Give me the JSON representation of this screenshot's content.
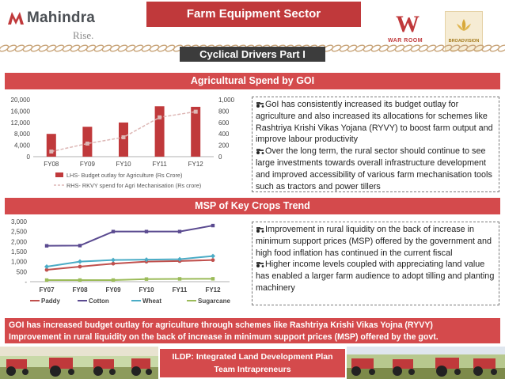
{
  "header": {
    "brand": "Mahindra",
    "tagline": "Rise.",
    "sector_title": "Farm Equipment Sector",
    "partner_logo_1_text": "WAR ROOM",
    "partner_logo_1_mark": "W",
    "partner_logo_2_text": "BROADVISION",
    "subtitle": "Cyclical Drivers Part I"
  },
  "section1": {
    "title": "Agricultural Spend by GOI",
    "bullets": [
      "GoI has consistently increased its budget outlay for agriculture and also increased its allocations for schemes like Rashtriya Krishi Vikas Yojana (RYVY) to boost farm output and improve labour productivity",
      "Over the long term, the rural sector should continue to see large investments towards overall infrastructure development and improved accessibility of various farm mechanisation tools such as tractors and power tillers"
    ]
  },
  "section2": {
    "title": "MSP of Key Crops Trend",
    "bullets": [
      "Improvement in rural liquidity on the back of increase in minimum support prices (MSP) offered by the government and high food inflation has continued in the current fiscal",
      "Higher income levels coupled with appreciating land value has enabled a larger farm audience to adopt tilling and planting machinery"
    ]
  },
  "summary": {
    "line1": "GOI has increased budget outlay for agriculture through schemes like Rashtriya Krishi Vikas Yojna (RYVY)",
    "line2": "Improvement in rural liquidity on the back of increase in minimum support prices (MSP) offered by the govt."
  },
  "footer": {
    "line1": "ILDP: Integrated Land Development Plan",
    "line2": "Team Intrapreneurs"
  },
  "colors": {
    "accent_red": "#d44a4c",
    "title_red": "#c0393b",
    "dark_band": "#3c3c3c",
    "bar_red": "#c0393b",
    "line_pink": "#ddb7b5",
    "paddy": "#c0504d",
    "cotton": "#5a4a90",
    "wheat": "#4bacc6",
    "sugarcane": "#9bbb59"
  },
  "chart_data": [
    {
      "type": "bar",
      "categories": [
        "FY08",
        "FY09",
        "FY10",
        "FY11",
        "FY12"
      ],
      "series": [
        {
          "name": "LHS- Budget outlay for Agriculture (Rs Crore)",
          "kind": "bar",
          "axis": "left",
          "values": [
            8000,
            10500,
            12000,
            17700,
            17500
          ]
        },
        {
          "name": "RHS- RKVY spend for Agri Mechanisation (Rs crore)",
          "kind": "line",
          "axis": "right",
          "values": [
            90,
            230,
            340,
            690,
            790
          ]
        }
      ],
      "y_left_ticks": [
        "20,000",
        "16,000",
        "12,000",
        "8,000",
        "4,000",
        "0"
      ],
      "y_right_ticks": [
        "1,000",
        "800",
        "600",
        "400",
        "200",
        "0"
      ],
      "ylim_left": [
        0,
        20000
      ],
      "ylim_right": [
        0,
        1000
      ],
      "legend_position": "bottom"
    },
    {
      "type": "line",
      "categories": [
        "FY07",
        "FY08",
        "FY09",
        "FY10",
        "FY11",
        "FY12"
      ],
      "series": [
        {
          "name": "Paddy",
          "values": [
            590,
            750,
            900,
            1000,
            1030,
            1080
          ]
        },
        {
          "name": "Cotton",
          "values": [
            1790,
            1800,
            2500,
            2500,
            2500,
            2800
          ]
        },
        {
          "name": "Wheat",
          "values": [
            750,
            1000,
            1080,
            1100,
            1120,
            1280
          ]
        },
        {
          "name": "Sugarcane",
          "values": [
            80,
            80,
            80,
            130,
            140,
            145
          ]
        }
      ],
      "y_ticks": [
        "3,000",
        "2,500",
        "2,000",
        "1,500",
        "1,000",
        "500",
        "-"
      ],
      "ylim": [
        0,
        3000
      ],
      "legend_position": "bottom"
    }
  ]
}
